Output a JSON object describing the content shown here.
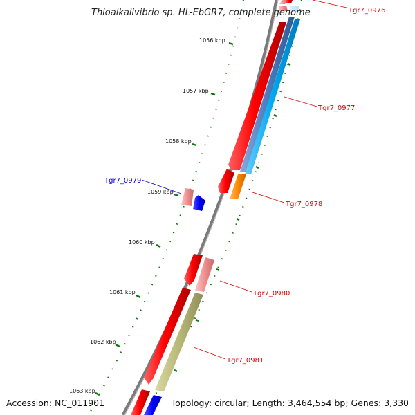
{
  "title": "Thioalkalivibrio sp. HL-EbGR7, complete genome",
  "footer": {
    "accession": "Accession: NC_011901",
    "topology": "Topology: circular; Length: 3,464,554 bp; Genes: 3,330"
  },
  "colors": {
    "backbone": "#7a7a7a",
    "cds_red": "#ff0000",
    "cds_pink": "#ee8f8f",
    "cds_blue": "#0000ff",
    "track_steel": "#4a7cc0",
    "track_cyan": "#00aaee",
    "track_orange": "#ff8800",
    "track_olive": "#b8b878",
    "tick_green": "#117711",
    "label_red": "#dd0000",
    "label_blue": "#0000cc"
  },
  "scale_labels": [
    "1056 kbp",
    "1057 kbp",
    "1058 kbp",
    "1059 kbp",
    "1060 kbp",
    "1061 kbp",
    "1062 kbp",
    "1063 kbp"
  ],
  "gene_labels": [
    {
      "name": "Tgr7_0976",
      "strand": "forward"
    },
    {
      "name": "Tgr7_0977",
      "strand": "forward"
    },
    {
      "name": "Tgr7_0978",
      "strand": "forward"
    },
    {
      "name": "Tgr7_0979",
      "strand": "reverse"
    },
    {
      "name": "Tgr7_0980",
      "strand": "forward"
    },
    {
      "name": "Tgr7_0981",
      "strand": "forward"
    }
  ]
}
